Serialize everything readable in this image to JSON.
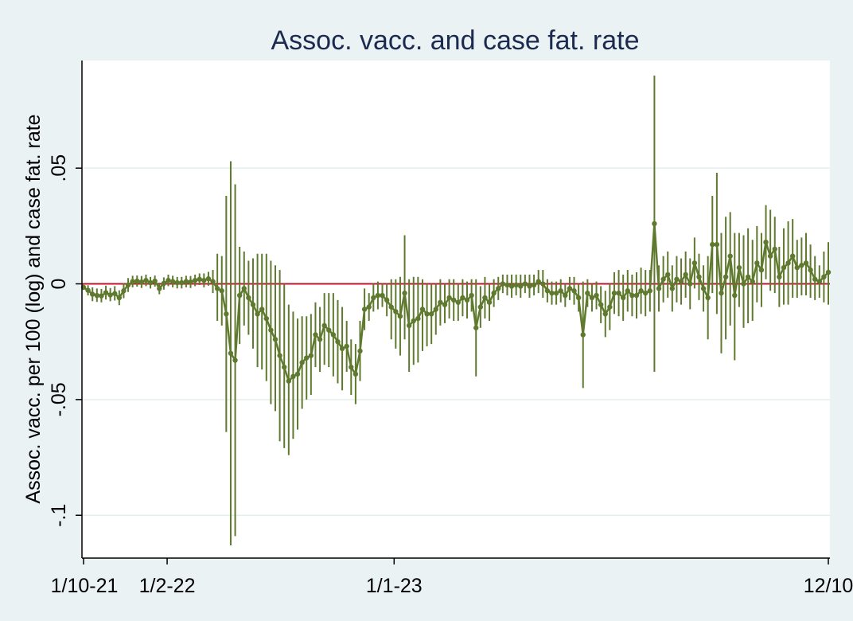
{
  "chart_data": {
    "type": "line",
    "title": "Assoc. vacc. and case fat. rate",
    "ylabel": "Assoc. vacc. per 100 (log) and case fat. rate",
    "xlabel": "",
    "x_start": "2021-10-01",
    "x_end": "2024-10-01",
    "x_ticks": [
      {
        "label": "1/10-21",
        "value": "2021-10-01"
      },
      {
        "label": "1/2-22",
        "value": "2022-02-01"
      },
      {
        "label": "1/1-23",
        "value": "2023-01-01"
      },
      {
        "label": "12/10",
        "value": "2024-10-01"
      }
    ],
    "y_ticks": [
      {
        "label": ".05",
        "value": 0.05
      },
      {
        "label": "0",
        "value": 0
      },
      {
        "label": "-.05",
        "value": -0.05
      },
      {
        "label": "-.1",
        "value": -0.1
      }
    ],
    "ylim": [
      -0.1185,
      0.0965
    ],
    "grid": true,
    "reference_line": {
      "y": 0,
      "color": "#c0142c"
    },
    "colors": {
      "series": "#5f7a2f",
      "background": "#eaf2f3",
      "plot_bg": "#ffffff",
      "grid": "#e3eeee",
      "title": "#1b2a4e",
      "axis": "#000000"
    },
    "series": [
      {
        "type": "point-with-ci",
        "points": [
          [
            -0.0015,
            -0.0025,
            -0.0005
          ],
          [
            -0.0028,
            -0.005,
            -0.0006
          ],
          [
            -0.0045,
            -0.0075,
            -0.0015
          ],
          [
            -0.005,
            -0.0078,
            -0.002
          ],
          [
            -0.0052,
            -0.008,
            -0.0022
          ],
          [
            -0.0038,
            -0.0068,
            -0.0008
          ],
          [
            -0.0048,
            -0.0075,
            -0.0018
          ],
          [
            -0.0042,
            -0.0072,
            -0.001
          ],
          [
            -0.006,
            -0.0092,
            -0.0028
          ],
          [
            -0.003,
            -0.0062,
            0.0002
          ],
          [
            -0.0005,
            -0.0035,
            0.0025
          ],
          [
            0.001,
            -0.0015,
            0.0035
          ],
          [
            0.0012,
            -0.0012,
            0.0036
          ],
          [
            0.0008,
            -0.0018,
            0.0034
          ],
          [
            0.0015,
            -0.001,
            0.004
          ],
          [
            0.0005,
            -0.002,
            0.003
          ],
          [
            0.0012,
            -0.0012,
            0.0036
          ],
          [
            -0.002,
            -0.0045,
            0.0005
          ],
          [
            0.0002,
            -0.0025,
            0.0028
          ],
          [
            0.0015,
            -0.001,
            0.004
          ],
          [
            0.001,
            -0.0015,
            0.0035
          ],
          [
            0.0005,
            -0.002,
            0.003
          ],
          [
            0.0005,
            -0.002,
            0.003
          ],
          [
            0.001,
            -0.0015,
            0.0035
          ],
          [
            0.0008,
            -0.0018,
            0.0034
          ],
          [
            0.0015,
            -0.001,
            0.004
          ],
          [
            0.002,
            -0.0005,
            0.0045
          ],
          [
            0.0015,
            -0.0015,
            0.0045
          ],
          [
            0.0022,
            -0.0008,
            0.0052
          ],
          [
            0.001,
            -0.004,
            0.006
          ],
          [
            -0.002,
            -0.016,
            0.013
          ],
          [
            -0.003,
            -0.018,
            0.012
          ],
          [
            -0.013,
            -0.064,
            0.038
          ],
          [
            -0.03,
            -0.113,
            0.053
          ],
          [
            -0.033,
            -0.109,
            0.043
          ],
          [
            -0.005,
            -0.026,
            0.016
          ],
          [
            -0.002,
            -0.018,
            0.014
          ],
          [
            -0.006,
            -0.022,
            0.01
          ],
          [
            -0.009,
            -0.028,
            0.011
          ],
          [
            -0.013,
            -0.036,
            0.013
          ],
          [
            -0.011,
            -0.037,
            0.013
          ],
          [
            -0.015,
            -0.042,
            0.013
          ],
          [
            -0.02,
            -0.052,
            0.01
          ],
          [
            -0.024,
            -0.055,
            0.008
          ],
          [
            -0.031,
            -0.068,
            0.006
          ],
          [
            -0.036,
            -0.071,
            0.0
          ],
          [
            -0.042,
            -0.074,
            -0.009
          ],
          [
            -0.04,
            -0.067,
            -0.012
          ],
          [
            -0.039,
            -0.063,
            -0.015
          ],
          [
            -0.034,
            -0.054,
            -0.014
          ],
          [
            -0.032,
            -0.05,
            -0.014
          ],
          [
            -0.031,
            -0.048,
            -0.013
          ],
          [
            -0.022,
            -0.036,
            -0.008
          ],
          [
            -0.024,
            -0.038,
            -0.01
          ],
          [
            -0.018,
            -0.035,
            -0.004
          ],
          [
            -0.02,
            -0.036,
            -0.004
          ],
          [
            -0.022,
            -0.04,
            -0.004
          ],
          [
            -0.025,
            -0.043,
            -0.007
          ],
          [
            -0.028,
            -0.046,
            -0.01
          ],
          [
            -0.027,
            -0.038,
            -0.016
          ],
          [
            -0.036,
            -0.048,
            -0.024
          ],
          [
            -0.039,
            -0.052,
            -0.026
          ],
          [
            -0.029,
            -0.042,
            -0.016
          ],
          [
            -0.011,
            -0.02,
            -0.002
          ],
          [
            -0.01,
            -0.016,
            -0.004
          ],
          [
            -0.006,
            -0.012,
            0.0
          ],
          [
            -0.005,
            -0.011,
            0.001
          ],
          [
            -0.005,
            -0.01,
            0.0
          ],
          [
            -0.007,
            -0.014,
            0.0
          ],
          [
            -0.01,
            -0.024,
            0.002
          ],
          [
            -0.012,
            -0.028,
            0.002
          ],
          [
            -0.014,
            -0.031,
            0.003
          ],
          [
            -0.004,
            -0.024,
            0.021
          ],
          [
            -0.018,
            -0.038,
            0.002
          ],
          [
            -0.016,
            -0.035,
            0.003
          ],
          [
            -0.015,
            -0.034,
            0.003
          ],
          [
            -0.011,
            -0.029,
            0.002
          ],
          [
            -0.013,
            -0.027,
            0.0
          ],
          [
            -0.013,
            -0.026,
            0.0
          ],
          [
            -0.011,
            -0.022,
            0.0
          ],
          [
            -0.008,
            -0.018,
            0.002
          ],
          [
            -0.009,
            -0.017,
            0.0
          ],
          [
            -0.006,
            -0.015,
            0.002
          ],
          [
            -0.007,
            -0.016,
            0.002
          ],
          [
            -0.008,
            -0.016,
            0.0
          ],
          [
            -0.006,
            -0.014,
            0.002
          ],
          [
            -0.007,
            -0.015,
            0.001
          ],
          [
            -0.005,
            -0.012,
            0.002
          ],
          [
            -0.019,
            -0.04,
            0.002
          ],
          [
            -0.01,
            -0.019,
            -0.001
          ],
          [
            -0.006,
            -0.015,
            0.003
          ],
          [
            -0.008,
            -0.016,
            0.0
          ],
          [
            -0.004,
            -0.01,
            0.002
          ],
          [
            -0.002,
            -0.007,
            0.003
          ],
          [
            0.0,
            -0.004,
            0.004
          ],
          [
            -0.0005,
            -0.005,
            0.004
          ],
          [
            -0.001,
            -0.006,
            0.004
          ],
          [
            -0.0005,
            -0.005,
            0.004
          ],
          [
            -0.001,
            -0.006,
            0.004
          ],
          [
            0.0,
            -0.004,
            0.004
          ],
          [
            -0.001,
            -0.006,
            0.004
          ],
          [
            -0.0005,
            -0.005,
            0.004
          ],
          [
            0.001,
            -0.004,
            0.006
          ],
          [
            0.0,
            -0.006,
            0.006
          ],
          [
            -0.003,
            -0.008,
            0.002
          ],
          [
            -0.004,
            -0.009,
            0.001
          ],
          [
            -0.004,
            -0.009,
            0.001
          ],
          [
            -0.003,
            -0.008,
            0.002
          ],
          [
            -0.005,
            -0.01,
            0.0
          ],
          [
            -0.002,
            -0.007,
            0.003
          ],
          [
            -0.003,
            -0.009,
            0.003
          ],
          [
            -0.006,
            -0.012,
            0.0
          ],
          [
            -0.022,
            -0.045,
            0.001
          ],
          [
            -0.004,
            -0.01,
            0.002
          ],
          [
            -0.006,
            -0.012,
            0.0
          ],
          [
            -0.005,
            -0.011,
            0.001
          ],
          [
            -0.009,
            -0.017,
            -0.001
          ],
          [
            -0.013,
            -0.023,
            -0.003
          ],
          [
            -0.01,
            -0.02,
            0.0
          ],
          [
            -0.004,
            -0.013,
            0.005
          ],
          [
            -0.004,
            -0.014,
            0.006
          ],
          [
            -0.006,
            -0.016,
            0.004
          ],
          [
            -0.003,
            -0.012,
            0.006
          ],
          [
            -0.005,
            -0.014,
            0.004
          ],
          [
            -0.005,
            -0.015,
            0.005
          ],
          [
            -0.003,
            -0.013,
            0.007
          ],
          [
            -0.004,
            -0.014,
            0.006
          ],
          [
            -0.003,
            -0.012,
            0.006
          ],
          [
            0.026,
            -0.038,
            0.09
          ],
          [
            -0.002,
            -0.012,
            0.008
          ],
          [
            0.002,
            -0.008,
            0.012
          ],
          [
            0.004,
            -0.006,
            0.014
          ],
          [
            -0.002,
            -0.012,
            0.008
          ],
          [
            0.002,
            -0.008,
            0.012
          ],
          [
            0.001,
            -0.009,
            0.011
          ],
          [
            0.004,
            -0.006,
            0.014
          ],
          [
            0.0,
            -0.011,
            0.011
          ],
          [
            0.009,
            -0.002,
            0.02
          ],
          [
            0.003,
            -0.007,
            0.013
          ],
          [
            -0.002,
            -0.012,
            0.008
          ],
          [
            -0.006,
            -0.024,
            0.012
          ],
          [
            0.017,
            -0.004,
            0.038
          ],
          [
            0.017,
            -0.013,
            0.048
          ],
          [
            -0.004,
            -0.03,
            0.022
          ],
          [
            0.003,
            -0.024,
            0.029
          ],
          [
            0.012,
            -0.018,
            0.031
          ],
          [
            -0.005,
            -0.033,
            0.022
          ],
          [
            0.007,
            -0.01,
            0.022
          ],
          [
            0.0,
            -0.019,
            0.021
          ],
          [
            0.003,
            -0.017,
            0.024
          ],
          [
            0.001,
            -0.016,
            0.019
          ],
          [
            0.009,
            -0.008,
            0.025
          ],
          [
            0.006,
            -0.01,
            0.022
          ],
          [
            0.018,
            0.002,
            0.034
          ],
          [
            0.012,
            -0.003,
            0.032
          ],
          [
            0.015,
            -0.004,
            0.029
          ],
          [
            0.003,
            -0.01,
            0.016
          ],
          [
            0.007,
            -0.009,
            0.024
          ],
          [
            0.009,
            -0.009,
            0.027
          ],
          [
            0.012,
            -0.006,
            0.028
          ],
          [
            0.007,
            -0.006,
            0.019
          ],
          [
            0.008,
            -0.005,
            0.02
          ],
          [
            0.009,
            -0.005,
            0.022
          ],
          [
            0.006,
            -0.006,
            0.017
          ],
          [
            0.002,
            -0.007,
            0.012
          ],
          [
            0.001,
            -0.006,
            0.008
          ],
          [
            0.003,
            -0.008,
            0.014
          ],
          [
            0.005,
            -0.009,
            0.018
          ]
        ]
      }
    ]
  }
}
